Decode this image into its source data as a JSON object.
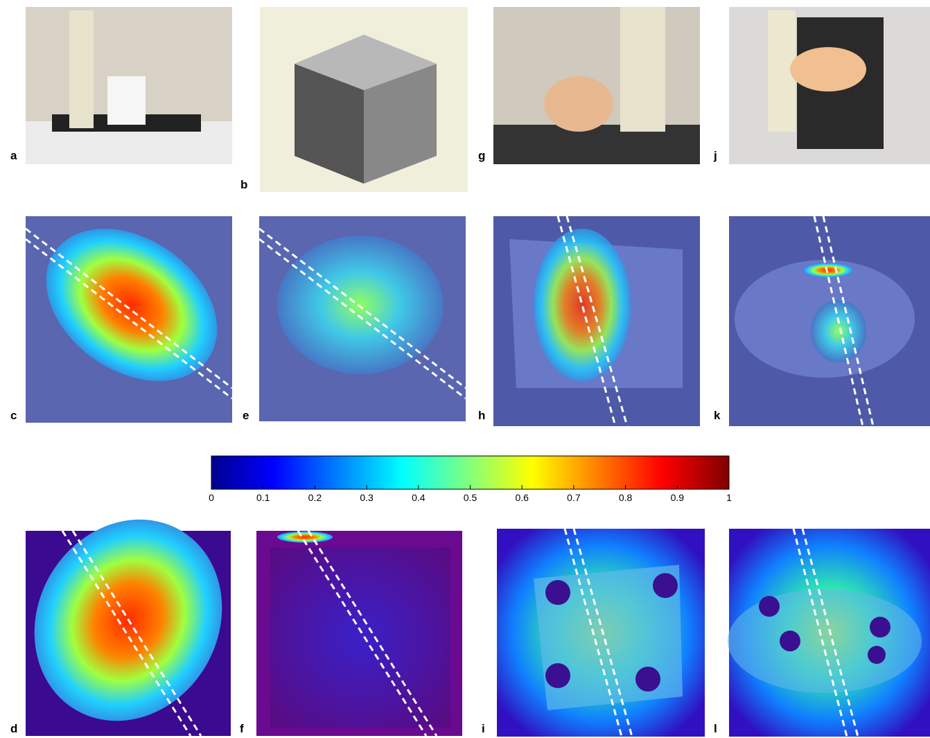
{
  "panels": [
    {
      "label": "a"
    },
    {
      "label": "b"
    },
    {
      "label": "g"
    },
    {
      "label": "j"
    },
    {
      "label": "c"
    },
    {
      "label": "e"
    },
    {
      "label": "h"
    },
    {
      "label": "k"
    },
    {
      "label": "d"
    },
    {
      "label": "f"
    },
    {
      "label": "i"
    },
    {
      "label": "l"
    }
  ],
  "colorbar": {
    "lim": [
      0,
      1
    ],
    "ticks": [
      0,
      0.1,
      0.2,
      0.3,
      0.4,
      0.5,
      0.6,
      0.7,
      0.8,
      0.9,
      1
    ]
  }
}
